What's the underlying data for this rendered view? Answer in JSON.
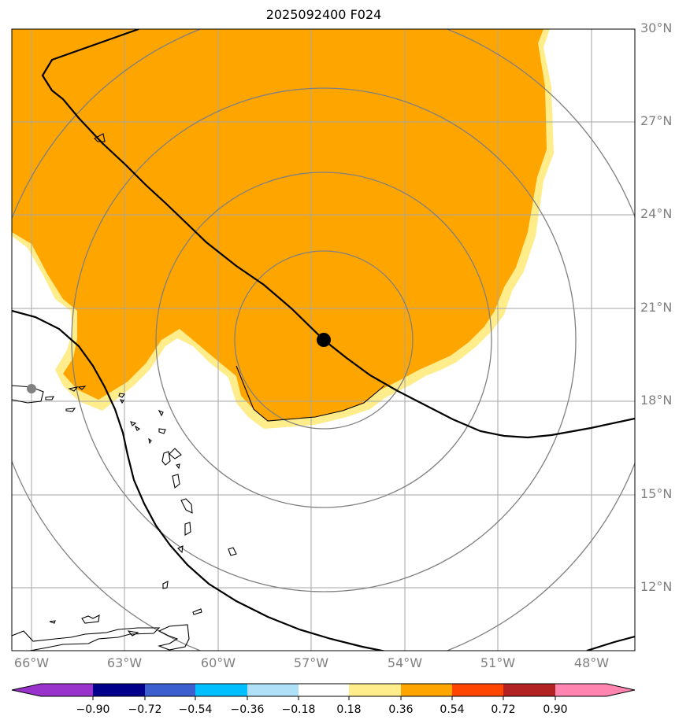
{
  "title": "2025092400 F024",
  "longitude_labels": [
    "66°W",
    "63°W",
    "60°W",
    "57°W",
    "54°W",
    "51°W",
    "48°W"
  ],
  "latitude_labels": [
    "30°N",
    "27°N",
    "24°N",
    "21°N",
    "18°N",
    "15°N",
    "12°N"
  ],
  "colorbar": {
    "ticks": [
      "−0.90",
      "−0.72",
      "−0.54",
      "−0.36",
      "−0.18",
      "0.18",
      "0.36",
      "0.54",
      "0.72",
      "0.90"
    ],
    "colors": [
      "#9932cc",
      "#00008b",
      "#3c5fd0",
      "#00bfff",
      "#b0e0f8",
      "#ffffff",
      "#ffec8b",
      "#ffa500",
      "#ff4500",
      "#b22222",
      "#ff85b0"
    ]
  },
  "colors": {
    "fill_main": "#ffa500",
    "fill_edge": "#ffec8b",
    "grid": "#a6a6a6",
    "range_rings": "#808080",
    "track": "#000000",
    "storm_center": "#000000"
  },
  "storm_center": {
    "lon": -56.6,
    "lat": 20.0
  }
}
